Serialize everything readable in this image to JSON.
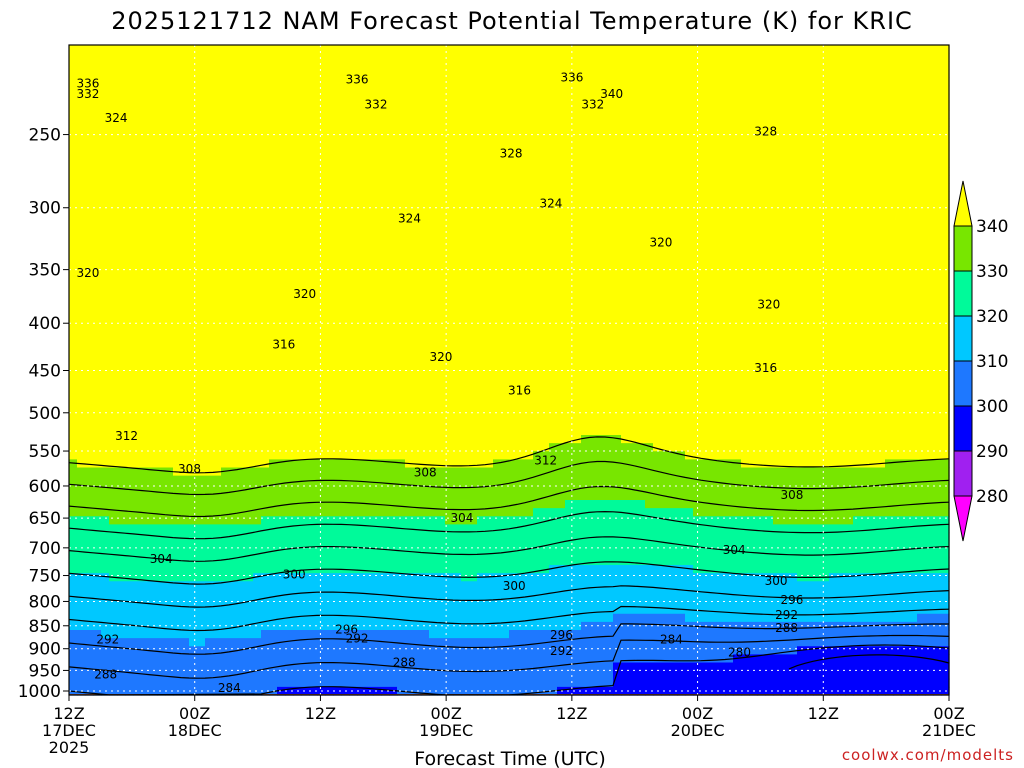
{
  "chart_data": {
    "type": "contour",
    "title": "2025121712 NAM Forecast Potential Temperature (K) for KRIC",
    "xlabel": "Forecast Time (UTC)",
    "ylabel": "",
    "credit": "coolwx.com/modelts",
    "x_ticks": [
      {
        "hours": 0,
        "line1": "12Z",
        "line2": "17DEC",
        "line3": "2025"
      },
      {
        "hours": 12,
        "line1": "00Z",
        "line2": "18DEC",
        "line3": ""
      },
      {
        "hours": 24,
        "line1": "12Z",
        "line2": "",
        "line3": ""
      },
      {
        "hours": 36,
        "line1": "00Z",
        "line2": "19DEC",
        "line3": ""
      },
      {
        "hours": 48,
        "line1": "12Z",
        "line2": "",
        "line3": ""
      },
      {
        "hours": 60,
        "line1": "00Z",
        "line2": "20DEC",
        "line3": ""
      },
      {
        "hours": 72,
        "line1": "12Z",
        "line2": "",
        "line3": ""
      },
      {
        "hours": 84,
        "line1": "00Z",
        "line2": "21DEC",
        "line3": ""
      }
    ],
    "xlim": [
      0,
      84
    ],
    "y_ticks": [
      250,
      300,
      350,
      400,
      450,
      500,
      550,
      600,
      650,
      700,
      750,
      800,
      850,
      900,
      950,
      1000
    ],
    "ylim": [
      200,
      1010
    ],
    "y_scale": "log-pressure (inverted)",
    "colorbar": {
      "levels": [
        280,
        290,
        300,
        310,
        320,
        330,
        340
      ],
      "colors": [
        "#ff00ff",
        "#a020f0",
        "#0000ff",
        "#1e78ff",
        "#00c8ff",
        "#00fa9a",
        "#78e600",
        "#ffff00"
      ],
      "extend": "both"
    },
    "ground_color": "#a0522d",
    "grid": true,
    "contour_interval": 4,
    "contour_labels": [
      {
        "t": 1.8,
        "p": 220,
        "v": "336"
      },
      {
        "t": 1.8,
        "p": 226,
        "v": "332"
      },
      {
        "t": 4.5,
        "p": 240,
        "v": "324"
      },
      {
        "t": 1.8,
        "p": 353,
        "v": "320"
      },
      {
        "t": 5.5,
        "p": 530,
        "v": "312"
      },
      {
        "t": 8.8,
        "p": 720,
        "v": "304"
      },
      {
        "t": 3.7,
        "p": 880,
        "v": "292"
      },
      {
        "t": 3.5,
        "p": 960,
        "v": "288"
      },
      {
        "t": 11.5,
        "p": 575,
        "v": "308"
      },
      {
        "t": 15.3,
        "p": 993,
        "v": "284"
      },
      {
        "t": 21.5,
        "p": 748,
        "v": "300"
      },
      {
        "t": 22.5,
        "p": 372,
        "v": "320"
      },
      {
        "t": 20.5,
        "p": 422,
        "v": "316"
      },
      {
        "t": 27.5,
        "p": 218,
        "v": "336"
      },
      {
        "t": 29.3,
        "p": 232,
        "v": "332"
      },
      {
        "t": 32.5,
        "p": 308,
        "v": "324"
      },
      {
        "t": 26.5,
        "p": 858,
        "v": "296"
      },
      {
        "t": 27.5,
        "p": 877,
        "v": "292"
      },
      {
        "t": 32.0,
        "p": 931,
        "v": "288"
      },
      {
        "t": 35.5,
        "p": 435,
        "v": "320"
      },
      {
        "t": 34.0,
        "p": 580,
        "v": "308"
      },
      {
        "t": 37.5,
        "p": 650,
        "v": "304"
      },
      {
        "t": 42.2,
        "p": 262,
        "v": "328"
      },
      {
        "t": 46.0,
        "p": 297,
        "v": "324"
      },
      {
        "t": 43.0,
        "p": 473,
        "v": "316"
      },
      {
        "t": 45.5,
        "p": 563,
        "v": "312"
      },
      {
        "t": 42.5,
        "p": 770,
        "v": "300"
      },
      {
        "t": 47.0,
        "p": 870,
        "v": "296"
      },
      {
        "t": 47.0,
        "p": 905,
        "v": "292"
      },
      {
        "t": 48.0,
        "p": 217,
        "v": "336"
      },
      {
        "t": 50.0,
        "p": 232,
        "v": "332"
      },
      {
        "t": 51.8,
        "p": 226,
        "v": "340"
      },
      {
        "t": 56.5,
        "p": 327,
        "v": "320"
      },
      {
        "t": 57.5,
        "p": 880,
        "v": "284"
      },
      {
        "t": 63.5,
        "p": 704,
        "v": "304"
      },
      {
        "t": 64.0,
        "p": 909,
        "v": "280"
      },
      {
        "t": 66.5,
        "p": 248,
        "v": "328"
      },
      {
        "t": 66.8,
        "p": 382,
        "v": "320"
      },
      {
        "t": 66.5,
        "p": 447,
        "v": "316"
      },
      {
        "t": 69.0,
        "p": 614,
        "v": "308"
      },
      {
        "t": 67.5,
        "p": 760,
        "v": "300"
      },
      {
        "t": 69.0,
        "p": 797,
        "v": "296"
      },
      {
        "t": 68.5,
        "p": 827,
        "v": "292"
      },
      {
        "t": 68.5,
        "p": 855,
        "v": "288"
      }
    ]
  }
}
